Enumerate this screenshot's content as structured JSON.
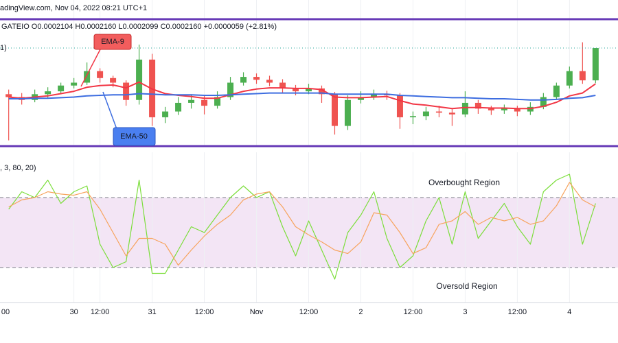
{
  "chart_data": [
    {
      "type": "candlestick",
      "title": "adingView.com, Nov 04, 2022 08:21 UTC+1",
      "subtitle": "GATEIO  O0.0002104  H0.0002160  L0.0002099  C0.0002160  +0.0000059 (+2.81%)",
      "indicator_label": "1)",
      "x": [
        15,
        18,
        21,
        24,
        27,
        30,
        33,
        36,
        39,
        42,
        45,
        48,
        51,
        54,
        57,
        60,
        63,
        66,
        69,
        72,
        75,
        78,
        81,
        84,
        87,
        90,
        93,
        96,
        99,
        102,
        105,
        108,
        111,
        114,
        117,
        120,
        123,
        126,
        129,
        132,
        135,
        138,
        141,
        144,
        147,
        150
      ],
      "open": [
        0.000208,
        0.0002075,
        0.000207,
        0.000208,
        0.0002085,
        0.0002095,
        0.00021,
        0.000212,
        0.0002108,
        0.00021,
        0.000207,
        0.000214,
        0.000204,
        0.000205,
        0.0002065,
        0.000207,
        0.000206,
        0.0002075,
        0.00021,
        0.000211,
        0.0002105,
        0.00021,
        0.000209,
        0.0002085,
        0.000209,
        0.000208,
        0.0002025,
        0.000207,
        0.0002075,
        0.000208,
        0.0002078,
        0.000204,
        0.0002042,
        0.000205,
        0.0002048,
        0.0002045,
        0.0002065,
        0.0002055,
        0.0002052,
        0.0002055,
        0.000205,
        0.0002058,
        0.0002075,
        0.0002095,
        0.000212,
        0.0002104
      ],
      "high": [
        0.0002088,
        0.0002082,
        0.0002088,
        0.0002092,
        0.00021,
        0.0002108,
        0.0002135,
        0.0002125,
        0.0002112,
        0.0002104,
        0.0002166,
        0.000215,
        0.0002058,
        0.0002075,
        0.000208,
        0.0002078,
        0.0002085,
        0.000211,
        0.0002118,
        0.0002116,
        0.0002112,
        0.0002106,
        0.0002096,
        0.0002098,
        0.0002095,
        0.0002084,
        0.0002078,
        0.0002085,
        0.0002088,
        0.0002086,
        0.0002082,
        0.000205,
        0.0002058,
        0.000206,
        0.0002056,
        0.0002085,
        0.000207,
        0.000206,
        0.0002062,
        0.000206,
        0.0002066,
        0.0002082,
        0.00021,
        0.0002128,
        0.000217,
        0.000216
      ],
      "low": [
        0.0002,
        0.0002062,
        0.0002066,
        0.0002074,
        0.000208,
        0.000209,
        0.0002096,
        0.00021,
        0.0002092,
        0.000206,
        0.0002062,
        0.0002025,
        0.000203,
        0.0002044,
        0.0002055,
        0.0002045,
        0.0002055,
        0.000207,
        0.0002095,
        0.0002098,
        0.0002094,
        0.0002082,
        0.0002078,
        0.000208,
        0.0002065,
        0.000201,
        0.0002018,
        0.0002064,
        0.000207,
        0.000207,
        0.000202,
        0.0002028,
        0.0002035,
        0.000204,
        0.0002025,
        0.000204,
        0.0002046,
        0.0002044,
        0.0002046,
        0.0002042,
        0.0002044,
        0.0002054,
        0.000207,
        0.000209,
        0.0002098,
        0.0002099
      ],
      "close": [
        0.0002075,
        0.000207,
        0.000208,
        0.0002085,
        0.0002095,
        0.00021,
        0.000212,
        0.0002108,
        0.00021,
        0.000207,
        0.000214,
        0.000204,
        0.000205,
        0.0002065,
        0.000207,
        0.000206,
        0.0002075,
        0.00021,
        0.000211,
        0.0002105,
        0.00021,
        0.000209,
        0.0002085,
        0.000209,
        0.000208,
        0.0002025,
        0.000207,
        0.0002075,
        0.000208,
        0.0002078,
        0.000204,
        0.0002042,
        0.000205,
        0.0002048,
        0.0002045,
        0.0002065,
        0.0002055,
        0.0002052,
        0.0002055,
        0.000205,
        0.0002058,
        0.0002075,
        0.0002095,
        0.000212,
        0.0002104,
        0.000216
      ],
      "up_color": "#4caf50",
      "down_color": "#ef5350",
      "overlays": [
        {
          "name": "EMA-9",
          "color": "#f23645",
          "values": [
            0.0002075,
            0.0002073,
            0.0002075,
            0.0002077,
            0.0002081,
            0.0002085,
            0.0002092,
            0.0002095,
            0.0002096,
            0.0002091,
            0.0002101,
            0.0002089,
            0.0002081,
            0.0002078,
            0.0002076,
            0.0002073,
            0.0002073,
            0.0002079,
            0.0002085,
            0.0002089,
            0.0002091,
            0.0002091,
            0.000209,
            0.000209,
            0.0002088,
            0.0002075,
            0.0002074,
            0.0002074,
            0.0002075,
            0.0002076,
            0.0002069,
            0.0002063,
            0.0002061,
            0.0002058,
            0.0002055,
            0.0002057,
            0.0002057,
            0.0002056,
            0.0002056,
            0.0002055,
            0.0002055,
            0.0002059,
            0.0002066,
            0.0002077,
            0.0002082,
            0.0002098
          ]
        },
        {
          "name": "EMA-50",
          "color": "#3d6de0",
          "values": [
            0.0002072,
            0.0002072,
            0.0002073,
            0.0002073,
            0.0002074,
            0.0002075,
            0.0002077,
            0.0002078,
            0.0002079,
            0.0002079,
            0.0002081,
            0.000208,
            0.0002079,
            0.0002079,
            0.0002079,
            0.0002078,
            0.0002078,
            0.0002079,
            0.000208,
            0.0002081,
            0.0002082,
            0.0002082,
            0.0002082,
            0.0002082,
            0.0002082,
            0.000208,
            0.000208,
            0.000208,
            0.000208,
            0.000208,
            0.0002078,
            0.0002077,
            0.0002076,
            0.0002075,
            0.0002074,
            0.0002074,
            0.0002073,
            0.0002072,
            0.0002072,
            0.0002071,
            0.000207,
            0.000207,
            0.0002071,
            0.0002073,
            0.0002074,
            0.0002078
          ]
        }
      ],
      "xlim": [
        13,
        152
      ],
      "ylim": [
        0.000199,
        0.000221
      ]
    },
    {
      "type": "line",
      "indicator_label": ", 3, 80, 20)",
      "x": [
        15,
        18,
        21,
        24,
        27,
        30,
        33,
        36,
        39,
        42,
        45,
        48,
        51,
        54,
        57,
        60,
        63,
        66,
        69,
        72,
        75,
        78,
        81,
        84,
        87,
        90,
        93,
        96,
        99,
        102,
        105,
        108,
        111,
        114,
        117,
        120,
        123,
        126,
        129,
        132,
        135,
        138,
        141,
        144,
        147,
        150
      ],
      "series": [
        {
          "color": "#7bde3a",
          "values": [
            70,
            85,
            80,
            95,
            75,
            85,
            90,
            40,
            20,
            25,
            95,
            15,
            15,
            35,
            55,
            50,
            65,
            80,
            90,
            80,
            85,
            55,
            30,
            60,
            35,
            10,
            50,
            65,
            85,
            45,
            20,
            30,
            60,
            80,
            40,
            85,
            45,
            60,
            75,
            55,
            40,
            85,
            95,
            100,
            40,
            75
          ]
        },
        {
          "color": "#f7a35c",
          "values": [
            72,
            78,
            80,
            85,
            83,
            82,
            85,
            70,
            50,
            30,
            45,
            45,
            40,
            22,
            35,
            47,
            57,
            65,
            78,
            83,
            85,
            72,
            55,
            48,
            42,
            35,
            32,
            42,
            67,
            65,
            50,
            32,
            37,
            57,
            60,
            68,
            57,
            63,
            60,
            63,
            57,
            60,
            73,
            93,
            78,
            72
          ]
        }
      ],
      "levels": [
        80,
        20
      ],
      "annotations": [
        "Overbought Region",
        "Oversold Region"
      ],
      "xlim": [
        13,
        152
      ],
      "ylim": [
        -10,
        110
      ],
      "xticks": [
        {
          "value": 12,
          "label": "00"
        },
        30,
        {
          "value": 36,
          "label": "12:00"
        },
        {
          "value": 48,
          "label": "31"
        },
        {
          "value": 60,
          "label": "12:00"
        },
        {
          "value": 72,
          "label": "Nov"
        },
        {
          "value": 84,
          "label": "12:00"
        },
        {
          "value": 96,
          "label": "2"
        },
        {
          "value": 108,
          "label": "12:00"
        },
        {
          "value": 120,
          "label": "3"
        },
        {
          "value": 132,
          "label": "12:00"
        },
        {
          "value": 144,
          "label": "4"
        }
      ]
    }
  ]
}
